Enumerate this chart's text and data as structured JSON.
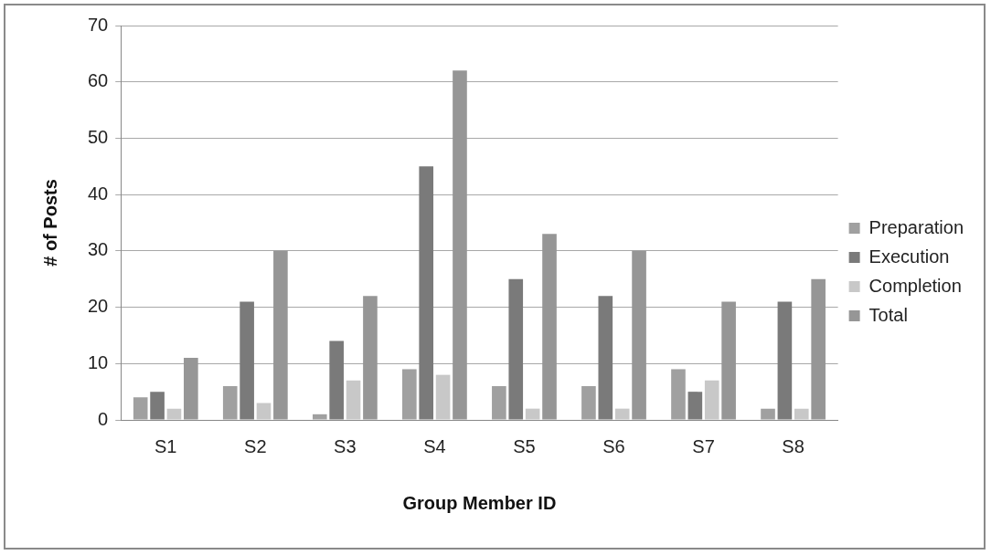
{
  "chart_data": {
    "type": "bar",
    "xlabel": "Group Member ID",
    "ylabel": "# of Posts",
    "categories": [
      "S1",
      "S2",
      "S3",
      "S4",
      "S5",
      "S6",
      "S7",
      "S8"
    ],
    "series": [
      {
        "name": "Preparation",
        "color": "#a0a0a0",
        "values": [
          4,
          6,
          1,
          9,
          6,
          6,
          9,
          2
        ]
      },
      {
        "name": "Execution",
        "color": "#7a7a7a",
        "values": [
          5,
          21,
          14,
          45,
          25,
          22,
          5,
          21
        ]
      },
      {
        "name": "Completion",
        "color": "#c8c8c8",
        "values": [
          2,
          3,
          7,
          8,
          2,
          2,
          7,
          2
        ]
      },
      {
        "name": "Total",
        "color": "#969696",
        "values": [
          11,
          30,
          22,
          62,
          33,
          30,
          21,
          25
        ]
      }
    ],
    "ylim": [
      0,
      70
    ],
    "yticks": [
      0,
      10,
      20,
      30,
      40,
      50,
      60,
      70
    ],
    "grid": "y",
    "legend": "right"
  }
}
